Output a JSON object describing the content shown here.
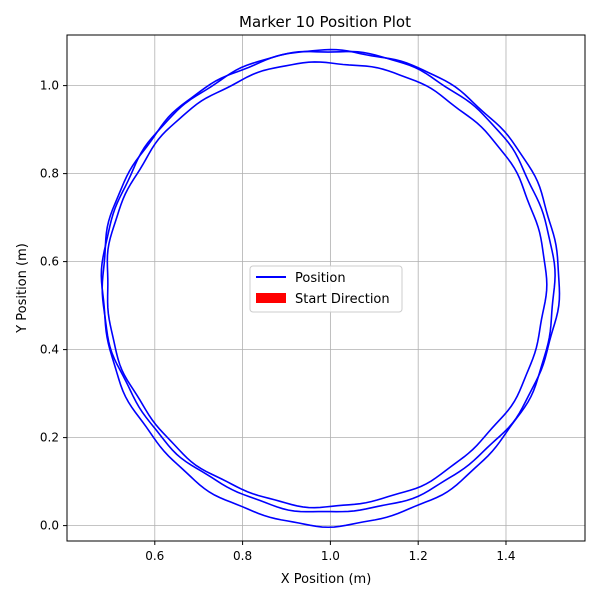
{
  "chart_data": {
    "type": "line",
    "title": "Marker 10 Position Plot",
    "xlabel": "X Position (m)",
    "ylabel": "Y Position (m)",
    "xlim": [
      0.4,
      1.58
    ],
    "ylim": [
      -0.035,
      1.115
    ],
    "xticks": [
      "0.6",
      "0.8",
      "1.0",
      "1.2",
      "1.4"
    ],
    "xtick_values": [
      0.6,
      0.8,
      1.0,
      1.2,
      1.4
    ],
    "yticks": [
      "0.0",
      "0.2",
      "0.4",
      "0.6",
      "0.8",
      "1.0"
    ],
    "ytick_values": [
      0.0,
      0.2,
      0.4,
      0.6,
      0.8,
      1.0
    ],
    "grid": true,
    "legend_placement": "center",
    "series": [
      {
        "name": "Position",
        "color": "#0000ff",
        "loops": [
          {
            "cx": 0.995,
            "cy": 0.54,
            "rx": 0.515,
            "ry": 0.54
          },
          {
            "cx": 0.99,
            "cy": 0.548,
            "rx": 0.5,
            "ry": 0.505
          },
          {
            "cx": 1.0,
            "cy": 0.555,
            "rx": 0.52,
            "ry": 0.525
          }
        ]
      },
      {
        "name": "Start Direction",
        "color": "#ff0000",
        "legend_only": true
      }
    ]
  }
}
